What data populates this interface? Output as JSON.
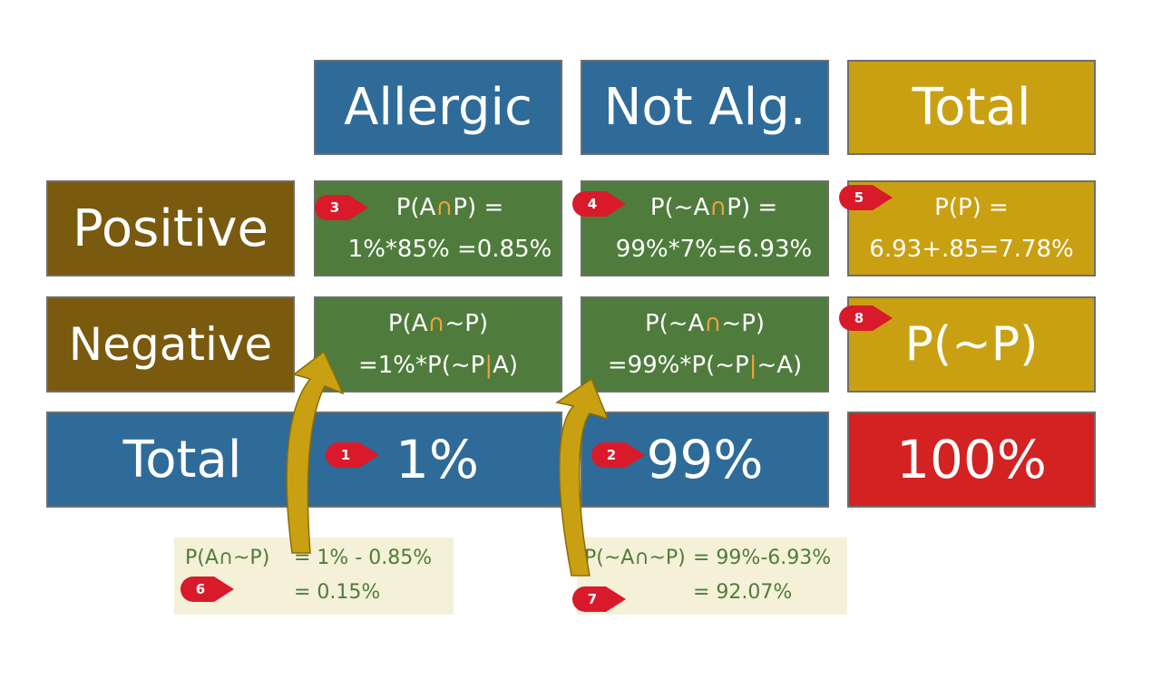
{
  "columns": [
    "Allergic",
    "Not Alg.",
    "Total"
  ],
  "rows": [
    "Positive",
    "Negative",
    "Total"
  ],
  "cells": {
    "pos_allergic": {
      "line1_pre": "P(A",
      "line1_op": "∩",
      "line1_post": "P) =",
      "line2": "1%*85% =0.85%"
    },
    "pos_notalg": {
      "line1_pre": "P(~A",
      "line1_op": "∩",
      "line1_post": "P) =",
      "line2": "99%*7%=6.93%"
    },
    "pos_total": {
      "line1": "P(P) =",
      "line2": "6.93+.85=7.78%"
    },
    "neg_allergic": {
      "line1_pre": "P(A",
      "line1_op": "∩",
      "line1_post": "~P)",
      "line2_pre": "=1%*P(~P",
      "line2_op": "|",
      "line2_post": "A)"
    },
    "neg_notalg": {
      "line1_pre": "P(~A",
      "line1_op": "∩",
      "line1_post": "~P)",
      "line2_pre": "=99%*P(~P",
      "line2_op": "|",
      "line2_post": "~A)"
    },
    "neg_total": {
      "text": "P(~P)"
    },
    "tot_allergic": {
      "text": "1%"
    },
    "tot_notalg": {
      "text": "99%"
    },
    "tot_total": {
      "text": "100%"
    }
  },
  "notes": {
    "note6": {
      "label": "P(A∩~P)",
      "line1": "= 1% - 0.85%",
      "line2": "= 0.15%"
    },
    "note7": {
      "label": "P(~A∩~P)",
      "line1": "= 99%-6.93%",
      "line2": "= 92.07%"
    }
  },
  "badges": [
    "1",
    "2",
    "3",
    "4",
    "5",
    "6",
    "7",
    "8"
  ],
  "colors": {
    "blue": "#2e6b99",
    "green": "#4f7c3c",
    "gold": "#c9a012",
    "brown": "#7a5a0f",
    "red": "#d42121",
    "arrow": "#c9a012",
    "badge": "#d91a2a"
  }
}
